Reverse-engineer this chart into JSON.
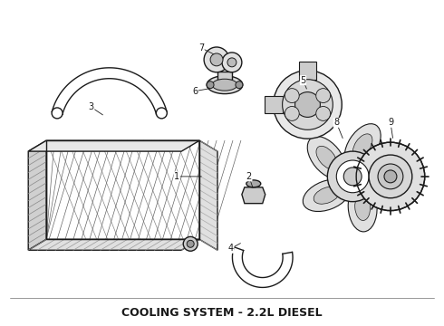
{
  "title": "COOLING SYSTEM - 2.2L DIESEL",
  "title_fontsize": 9,
  "title_fontweight": "bold",
  "bg_color": "#ffffff",
  "line_color": "#1a1a1a",
  "fig_width": 4.9,
  "fig_height": 3.6,
  "dpi": 100
}
